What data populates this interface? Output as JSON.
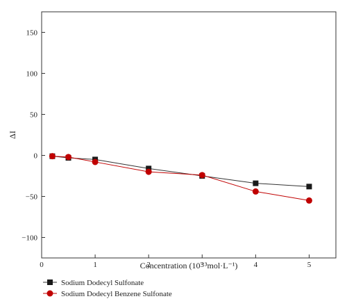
{
  "chart_data": {
    "type": "line",
    "xlabel": "Concentration (10⁻³mol·L⁻¹)",
    "ylabel": "ΔI",
    "xlim": [
      0,
      5.5
    ],
    "ylim": [
      -125,
      175
    ],
    "xticks": [
      0,
      1,
      2,
      3,
      4,
      5
    ],
    "yticks": [
      150,
      100,
      50,
      0,
      -50,
      -100
    ],
    "ytick_labels": [
      "150",
      "100",
      "50",
      "0",
      "−50",
      "−100"
    ],
    "grid": false,
    "legend_position": "bottom-left, below plot",
    "series": [
      {
        "name": "Sodium Dodecyl Sulfonate",
        "color": "#333333",
        "marker": "square",
        "x": [
          0.2,
          0.5,
          1,
          2,
          3,
          4,
          5
        ],
        "y": [
          -1,
          -3,
          -5,
          -16,
          -25,
          -34,
          -38
        ]
      },
      {
        "name": "Sodium Dodecyl Benzene Sulfonate",
        "color": "#c00000",
        "marker": "circle",
        "x": [
          0.2,
          0.5,
          1,
          2,
          3,
          4,
          5
        ],
        "y": [
          -1,
          -2,
          -8,
          -20,
          -24,
          -44,
          -55
        ]
      }
    ]
  }
}
